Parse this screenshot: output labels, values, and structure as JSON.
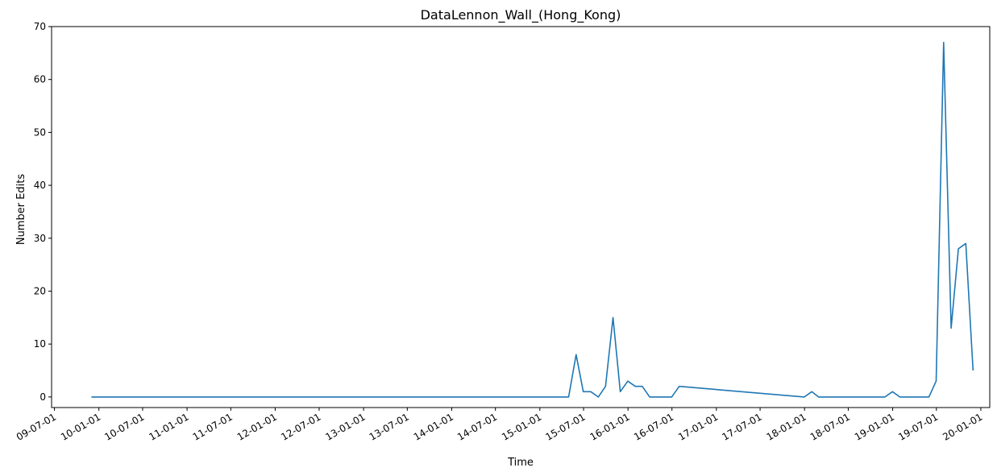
{
  "chart_data": {
    "type": "line",
    "title": "DataLennon_Wall_(Hong_Kong)",
    "xlabel": "Time",
    "ylabel": "Number Edits",
    "ylim": [
      -2,
      70
    ],
    "xlim": [
      "2009-06-19",
      "2020-02-07"
    ],
    "grid": false,
    "line_color": "#1f77b4",
    "y_ticks": [
      0,
      10,
      20,
      30,
      40,
      50,
      60,
      70
    ],
    "x_ticks": [
      {
        "date": "2009-07-01",
        "label": "09-07-01"
      },
      {
        "date": "2010-01-01",
        "label": "10-01-01"
      },
      {
        "date": "2010-07-01",
        "label": "10-07-01"
      },
      {
        "date": "2011-01-01",
        "label": "11-01-01"
      },
      {
        "date": "2011-07-01",
        "label": "11-07-01"
      },
      {
        "date": "2012-01-01",
        "label": "12-01-01"
      },
      {
        "date": "2012-07-01",
        "label": "12-07-01"
      },
      {
        "date": "2013-01-01",
        "label": "13-01-01"
      },
      {
        "date": "2013-07-01",
        "label": "13-07-01"
      },
      {
        "date": "2014-01-01",
        "label": "14-01-01"
      },
      {
        "date": "2014-07-01",
        "label": "14-07-01"
      },
      {
        "date": "2015-01-01",
        "label": "15-01-01"
      },
      {
        "date": "2015-07-01",
        "label": "15-07-01"
      },
      {
        "date": "2016-01-01",
        "label": "16-01-01"
      },
      {
        "date": "2016-07-01",
        "label": "16-07-01"
      },
      {
        "date": "2017-01-01",
        "label": "17-01-01"
      },
      {
        "date": "2017-07-01",
        "label": "17-07-01"
      },
      {
        "date": "2018-01-01",
        "label": "18-01-01"
      },
      {
        "date": "2018-07-01",
        "label": "18-07-01"
      },
      {
        "date": "2019-01-01",
        "label": "19-01-01"
      },
      {
        "date": "2019-07-01",
        "label": "19-07-01"
      },
      {
        "date": "2020-01-01",
        "label": "20-01-01"
      }
    ],
    "series": [
      {
        "x": [
          "2009-12-01",
          "2015-04-30",
          "2015-05-31",
          "2015-06-30",
          "2015-07-31",
          "2015-08-31",
          "2015-09-30",
          "2015-10-31",
          "2015-11-30",
          "2015-12-31",
          "2016-01-31",
          "2016-02-29",
          "2016-03-31",
          "2016-04-30",
          "2016-05-31",
          "2016-06-30",
          "2016-07-31",
          "2017-12-31",
          "2018-01-31",
          "2018-02-28",
          "2018-11-30",
          "2018-12-31",
          "2019-01-31",
          "2019-05-31",
          "2019-06-30",
          "2019-07-31",
          "2019-08-31",
          "2019-09-30",
          "2019-10-31",
          "2019-11-30"
        ],
        "values": [
          0,
          0,
          8,
          1,
          1,
          0,
          2,
          15,
          1,
          3,
          2,
          2,
          0,
          0,
          0,
          0,
          2,
          0,
          1,
          0,
          0,
          1,
          0,
          0,
          3,
          67,
          13,
          28,
          29,
          5
        ]
      }
    ]
  }
}
